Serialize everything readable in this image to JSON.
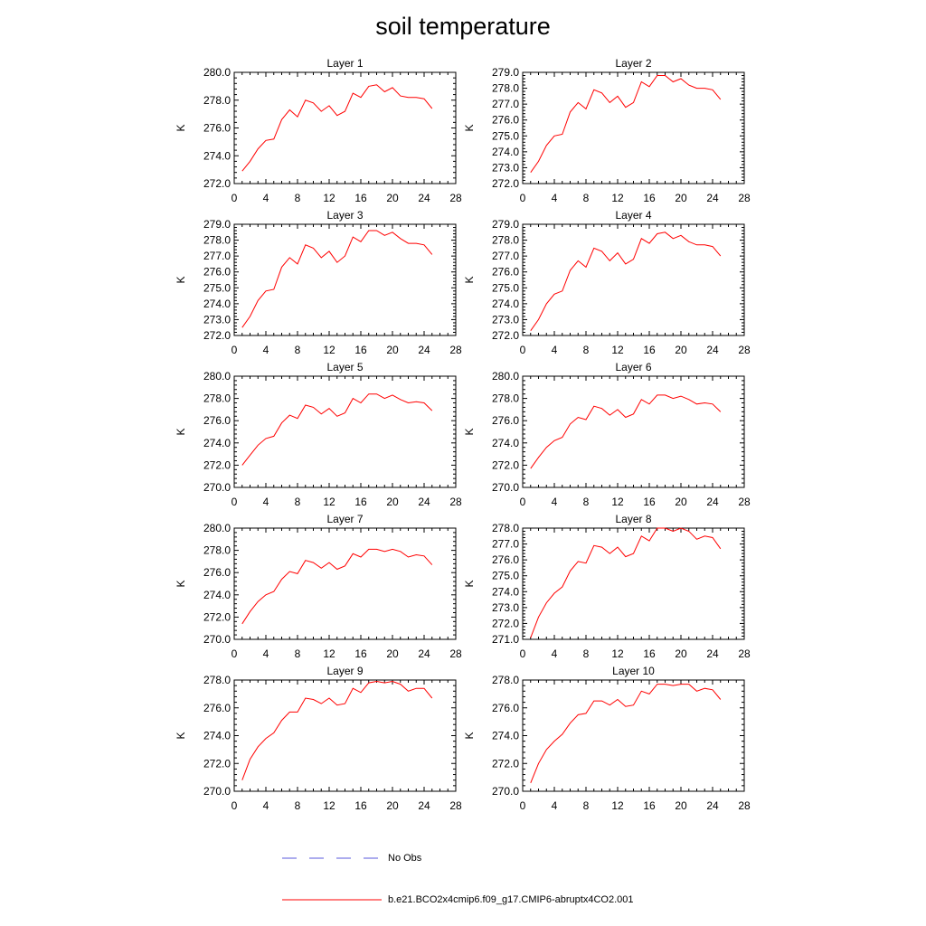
{
  "figure": {
    "title": "soil temperature"
  },
  "legend": {
    "entries": [
      {
        "label": "No Obs",
        "color": "#5a5adc",
        "style": "dashed"
      },
      {
        "label": "b.e21.BCO2x4cmip6.f09_g17.CMIP6-abruptx4CO2.001",
        "color": "#ff0000",
        "style": "solid"
      }
    ]
  },
  "chart_data": [
    {
      "type": "line",
      "title": "Layer 1",
      "ylabel": "K",
      "xlim": [
        0,
        28
      ],
      "ylim": [
        272,
        280
      ],
      "xticks": [
        0,
        4,
        8,
        12,
        16,
        20,
        24,
        28
      ],
      "yticks": [
        272,
        274,
        276,
        278,
        280
      ],
      "ytick_decimals": 1,
      "x": [
        1,
        2,
        3,
        4,
        5,
        6,
        7,
        8,
        9,
        10,
        11,
        12,
        13,
        14,
        15,
        16,
        17,
        18,
        19,
        20,
        21,
        22,
        23,
        24,
        25
      ],
      "series": [
        {
          "name": "b.e21.BCO2x4cmip6.f09_g17.CMIP6-abruptx4CO2.001",
          "color": "#ff0000",
          "values": [
            272.9,
            273.6,
            274.5,
            275.1,
            275.2,
            276.6,
            277.3,
            276.8,
            278.0,
            277.8,
            277.2,
            277.6,
            276.9,
            277.2,
            278.5,
            278.2,
            279.0,
            279.1,
            278.6,
            278.9,
            278.3,
            278.2,
            278.2,
            278.1,
            277.4
          ]
        }
      ]
    },
    {
      "type": "line",
      "title": "Layer 2",
      "ylabel": "K",
      "xlim": [
        0,
        28
      ],
      "ylim": [
        272,
        279
      ],
      "xticks": [
        0,
        4,
        8,
        12,
        16,
        20,
        24,
        28
      ],
      "yticks": [
        272,
        273,
        274,
        275,
        276,
        277,
        278,
        279
      ],
      "ytick_decimals": 1,
      "x": [
        1,
        2,
        3,
        4,
        5,
        6,
        7,
        8,
        9,
        10,
        11,
        12,
        13,
        14,
        15,
        16,
        17,
        18,
        19,
        20,
        21,
        22,
        23,
        24,
        25
      ],
      "series": [
        {
          "name": "b.e21.BCO2x4cmip6.f09_g17.CMIP6-abruptx4CO2.001",
          "color": "#ff0000",
          "values": [
            272.7,
            273.4,
            274.4,
            275.0,
            275.1,
            276.5,
            277.1,
            276.7,
            277.9,
            277.7,
            277.1,
            277.5,
            276.8,
            277.1,
            278.4,
            278.1,
            278.8,
            278.8,
            278.4,
            278.6,
            278.2,
            278.0,
            278.0,
            277.9,
            277.3
          ]
        }
      ]
    },
    {
      "type": "line",
      "title": "Layer 3",
      "ylabel": "K",
      "xlim": [
        0,
        28
      ],
      "ylim": [
        272,
        279
      ],
      "xticks": [
        0,
        4,
        8,
        12,
        16,
        20,
        24,
        28
      ],
      "yticks": [
        272,
        273,
        274,
        275,
        276,
        277,
        278,
        279
      ],
      "ytick_decimals": 1,
      "x": [
        1,
        2,
        3,
        4,
        5,
        6,
        7,
        8,
        9,
        10,
        11,
        12,
        13,
        14,
        15,
        16,
        17,
        18,
        19,
        20,
        21,
        22,
        23,
        24,
        25
      ],
      "series": [
        {
          "name": "b.e21.BCO2x4cmip6.f09_g17.CMIP6-abruptx4CO2.001",
          "color": "#ff0000",
          "values": [
            272.5,
            273.2,
            274.2,
            274.8,
            274.9,
            276.3,
            276.9,
            276.5,
            277.7,
            277.5,
            276.9,
            277.3,
            276.6,
            277.0,
            278.2,
            277.9,
            278.6,
            278.6,
            278.3,
            278.5,
            278.1,
            277.8,
            277.8,
            277.7,
            277.1
          ]
        }
      ]
    },
    {
      "type": "line",
      "title": "Layer 4",
      "ylabel": "K",
      "xlim": [
        0,
        28
      ],
      "ylim": [
        272,
        279
      ],
      "xticks": [
        0,
        4,
        8,
        12,
        16,
        20,
        24,
        28
      ],
      "yticks": [
        272,
        273,
        274,
        275,
        276,
        277,
        278,
        279
      ],
      "ytick_decimals": 1,
      "x": [
        1,
        2,
        3,
        4,
        5,
        6,
        7,
        8,
        9,
        10,
        11,
        12,
        13,
        14,
        15,
        16,
        17,
        18,
        19,
        20,
        21,
        22,
        23,
        24,
        25
      ],
      "series": [
        {
          "name": "b.e21.BCO2x4cmip6.f09_g17.CMIP6-abruptx4CO2.001",
          "color": "#ff0000",
          "values": [
            272.3,
            273.0,
            274.0,
            274.6,
            274.8,
            276.1,
            276.7,
            276.3,
            277.5,
            277.3,
            276.7,
            277.2,
            276.5,
            276.8,
            278.1,
            277.8,
            278.4,
            278.5,
            278.1,
            278.3,
            277.9,
            277.7,
            277.7,
            277.6,
            277.0
          ]
        }
      ]
    },
    {
      "type": "line",
      "title": "Layer 5",
      "ylabel": "K",
      "xlim": [
        0,
        28
      ],
      "ylim": [
        270,
        280
      ],
      "xticks": [
        0,
        4,
        8,
        12,
        16,
        20,
        24,
        28
      ],
      "yticks": [
        270,
        272,
        274,
        276,
        278,
        280
      ],
      "ytick_decimals": 1,
      "x": [
        1,
        2,
        3,
        4,
        5,
        6,
        7,
        8,
        9,
        10,
        11,
        12,
        13,
        14,
        15,
        16,
        17,
        18,
        19,
        20,
        21,
        22,
        23,
        24,
        25
      ],
      "series": [
        {
          "name": "b.e21.BCO2x4cmip6.f09_g17.CMIP6-abruptx4CO2.001",
          "color": "#ff0000",
          "values": [
            272.0,
            272.9,
            273.8,
            274.4,
            274.6,
            275.8,
            276.5,
            276.2,
            277.4,
            277.2,
            276.6,
            277.1,
            276.4,
            276.7,
            278.0,
            277.6,
            278.4,
            278.4,
            278.0,
            278.3,
            277.9,
            277.6,
            277.7,
            277.6,
            276.9
          ]
        }
      ]
    },
    {
      "type": "line",
      "title": "Layer 6",
      "ylabel": "K",
      "xlim": [
        0,
        28
      ],
      "ylim": [
        270,
        280
      ],
      "xticks": [
        0,
        4,
        8,
        12,
        16,
        20,
        24,
        28
      ],
      "yticks": [
        270,
        272,
        274,
        276,
        278,
        280
      ],
      "ytick_decimals": 1,
      "x": [
        1,
        2,
        3,
        4,
        5,
        6,
        7,
        8,
        9,
        10,
        11,
        12,
        13,
        14,
        15,
        16,
        17,
        18,
        19,
        20,
        21,
        22,
        23,
        24,
        25
      ],
      "series": [
        {
          "name": "b.e21.BCO2x4cmip6.f09_g17.CMIP6-abruptx4CO2.001",
          "color": "#ff0000",
          "values": [
            271.7,
            272.7,
            273.6,
            274.2,
            274.5,
            275.7,
            276.3,
            276.1,
            277.3,
            277.1,
            276.5,
            277.0,
            276.3,
            276.6,
            277.9,
            277.5,
            278.3,
            278.3,
            278.0,
            278.2,
            277.9,
            277.5,
            277.6,
            277.5,
            276.8
          ]
        }
      ]
    },
    {
      "type": "line",
      "title": "Layer 7",
      "ylabel": "K",
      "xlim": [
        0,
        28
      ],
      "ylim": [
        270,
        280
      ],
      "xticks": [
        0,
        4,
        8,
        12,
        16,
        20,
        24,
        28
      ],
      "yticks": [
        270,
        272,
        274,
        276,
        278,
        280
      ],
      "ytick_decimals": 1,
      "x": [
        1,
        2,
        3,
        4,
        5,
        6,
        7,
        8,
        9,
        10,
        11,
        12,
        13,
        14,
        15,
        16,
        17,
        18,
        19,
        20,
        21,
        22,
        23,
        24,
        25
      ],
      "series": [
        {
          "name": "b.e21.BCO2x4cmip6.f09_g17.CMIP6-abruptx4CO2.001",
          "color": "#ff0000",
          "values": [
            271.4,
            272.5,
            273.4,
            274.0,
            274.3,
            275.4,
            276.1,
            275.9,
            277.1,
            276.9,
            276.4,
            276.9,
            276.3,
            276.6,
            277.7,
            277.4,
            278.1,
            278.1,
            277.9,
            278.1,
            277.9,
            277.4,
            277.6,
            277.5,
            276.7
          ]
        }
      ]
    },
    {
      "type": "line",
      "title": "Layer 8",
      "ylabel": "K",
      "xlim": [
        0,
        28
      ],
      "ylim": [
        271,
        278
      ],
      "xticks": [
        0,
        4,
        8,
        12,
        16,
        20,
        24,
        28
      ],
      "yticks": [
        271,
        272,
        273,
        274,
        275,
        276,
        277,
        278
      ],
      "ytick_decimals": 1,
      "x": [
        1,
        2,
        3,
        4,
        5,
        6,
        7,
        8,
        9,
        10,
        11,
        12,
        13,
        14,
        15,
        16,
        17,
        18,
        19,
        20,
        21,
        22,
        23,
        24,
        25
      ],
      "series": [
        {
          "name": "b.e21.BCO2x4cmip6.f09_g17.CMIP6-abruptx4CO2.001",
          "color": "#ff0000",
          "values": [
            271.1,
            272.4,
            273.3,
            273.9,
            274.3,
            275.3,
            275.9,
            275.8,
            276.9,
            276.8,
            276.4,
            276.8,
            276.2,
            276.4,
            277.5,
            277.2,
            278.0,
            278.0,
            277.8,
            278.0,
            277.8,
            277.3,
            277.5,
            277.4,
            276.7
          ]
        }
      ]
    },
    {
      "type": "line",
      "title": "Layer 9",
      "ylabel": "K",
      "xlim": [
        0,
        28
      ],
      "ylim": [
        270,
        278
      ],
      "xticks": [
        0,
        4,
        8,
        12,
        16,
        20,
        24,
        28
      ],
      "yticks": [
        270,
        272,
        274,
        276,
        278
      ],
      "ytick_decimals": 1,
      "x": [
        1,
        2,
        3,
        4,
        5,
        6,
        7,
        8,
        9,
        10,
        11,
        12,
        13,
        14,
        15,
        16,
        17,
        18,
        19,
        20,
        21,
        22,
        23,
        24,
        25
      ],
      "series": [
        {
          "name": "b.e21.BCO2x4cmip6.f09_g17.CMIP6-abruptx4CO2.001",
          "color": "#ff0000",
          "values": [
            270.8,
            272.3,
            273.2,
            273.8,
            274.2,
            275.1,
            275.7,
            275.7,
            276.7,
            276.6,
            276.3,
            276.7,
            276.2,
            276.3,
            277.4,
            277.1,
            277.8,
            277.9,
            277.8,
            277.9,
            277.7,
            277.2,
            277.4,
            277.4,
            276.7
          ]
        }
      ]
    },
    {
      "type": "line",
      "title": "Layer 10",
      "ylabel": "K",
      "xlim": [
        0,
        28
      ],
      "ylim": [
        270,
        278
      ],
      "xticks": [
        0,
        4,
        8,
        12,
        16,
        20,
        24,
        28
      ],
      "yticks": [
        270,
        272,
        274,
        276,
        278
      ],
      "ytick_decimals": 1,
      "x": [
        1,
        2,
        3,
        4,
        5,
        6,
        7,
        8,
        9,
        10,
        11,
        12,
        13,
        14,
        15,
        16,
        17,
        18,
        19,
        20,
        21,
        22,
        23,
        24,
        25
      ],
      "series": [
        {
          "name": "b.e21.BCO2x4cmip6.f09_g17.CMIP6-abruptx4CO2.001",
          "color": "#ff0000",
          "values": [
            270.6,
            272.0,
            273.0,
            273.6,
            274.1,
            274.9,
            275.5,
            275.6,
            276.5,
            276.5,
            276.2,
            276.6,
            276.1,
            276.2,
            277.2,
            277.0,
            277.7,
            277.7,
            277.6,
            277.7,
            277.7,
            277.2,
            277.4,
            277.3,
            276.6
          ]
        }
      ]
    }
  ]
}
